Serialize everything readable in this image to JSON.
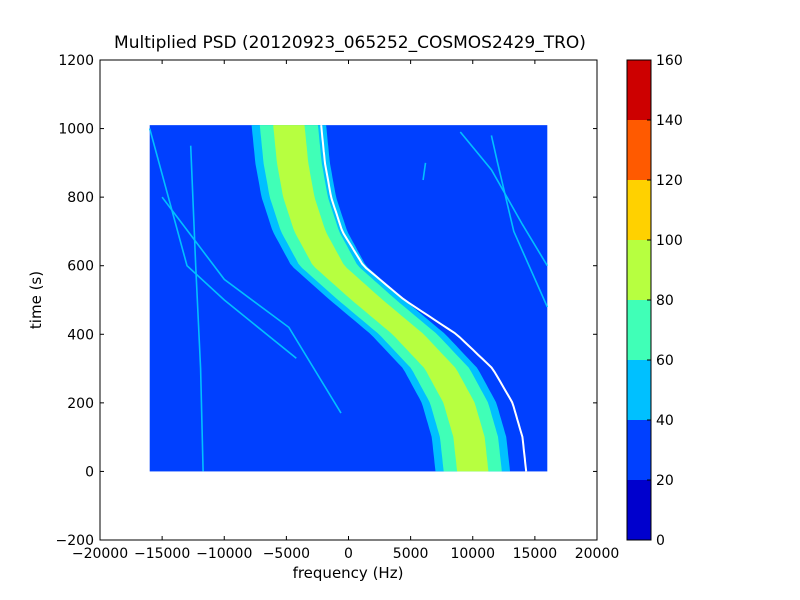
{
  "chart_data": {
    "type": "heatmap",
    "title": "Multiplied PSD (20120923_065252_COSMOS2429_TRO)",
    "xlabel": "frequency (Hz)",
    "ylabel": "time (s)",
    "xlim": [
      -20000,
      20000
    ],
    "ylim": [
      -200,
      1200
    ],
    "xticks": [
      -20000,
      -15000,
      -10000,
      -5000,
      0,
      5000,
      10000,
      15000,
      20000
    ],
    "xtick_labels": [
      "−20000",
      "−15000",
      "−10000",
      "−5000",
      "0",
      "5000",
      "10000",
      "15000",
      "20000"
    ],
    "yticks": [
      -200,
      0,
      200,
      400,
      600,
      800,
      1000,
      1200
    ],
    "ytick_labels": [
      "−200",
      "0",
      "200",
      "400",
      "600",
      "800",
      "1000",
      "1200"
    ],
    "data_extent": {
      "freq": [
        -16000,
        16000
      ],
      "time": [
        0,
        1010
      ]
    },
    "colormap": "jet",
    "colorbar": {
      "ticks": [
        0,
        20,
        40,
        60,
        80,
        100,
        120,
        140,
        160
      ],
      "tick_labels": [
        "0",
        "20",
        "40",
        "60",
        "80",
        "100",
        "120",
        "140",
        "160"
      ],
      "levels": [
        {
          "from": 0,
          "to": 20,
          "color": "#0000cd"
        },
        {
          "from": 20,
          "to": 40,
          "color": "#0040ff"
        },
        {
          "from": 40,
          "to": 60,
          "color": "#00c0ff"
        },
        {
          "from": 60,
          "to": 80,
          "color": "#40ffb7"
        },
        {
          "from": 80,
          "to": 100,
          "color": "#b7ff40"
        },
        {
          "from": 100,
          "to": 120,
          "color": "#ffd100"
        },
        {
          "from": 120,
          "to": 140,
          "color": "#ff5a00"
        },
        {
          "from": 140,
          "to": 160,
          "color": "#cd0000"
        }
      ]
    },
    "main_trace": {
      "description_points_time_s": [
        0,
        100,
        200,
        300,
        400,
        500,
        600,
        700,
        800,
        900,
        1010
      ],
      "center_freq_hz": [
        10000,
        9700,
        8900,
        7400,
        4800,
        1500,
        -1600,
        -3100,
        -4000,
        -4500,
        -4800
      ],
      "half_width_hz": 3000,
      "peak_level": 95
    },
    "fit_curve_white": {
      "time_s": [
        0,
        100,
        200,
        300,
        400,
        500,
        600,
        700,
        800,
        900,
        1010
      ],
      "freq_hz": [
        14300,
        14000,
        13200,
        11600,
        8700,
        4500,
        1200,
        -500,
        -1400,
        -1900,
        -2200
      ]
    },
    "secondary_traces": [
      {
        "time_s": [
          0,
          300,
          600,
          950
        ],
        "freq_hz": [
          -11700,
          -11900,
          -12300,
          -12700
        ],
        "level": 45
      },
      {
        "time_s": [
          170,
          420,
          560,
          800
        ],
        "freq_hz": [
          -600,
          -4800,
          -10000,
          -15000
        ],
        "level": 40
      },
      {
        "time_s": [
          330,
          500,
          600,
          1000
        ],
        "freq_hz": [
          -4200,
          -10000,
          -13000,
          -16000
        ],
        "level": 40
      },
      {
        "time_s": [
          480,
          700,
          900,
          980
        ],
        "freq_hz": [
          16000,
          13300,
          12000,
          11500
        ],
        "level": 40
      },
      {
        "time_s": [
          600,
          720,
          880,
          990
        ],
        "freq_hz": [
          16000,
          14000,
          11500,
          9000
        ],
        "level": 40
      },
      {
        "time_s": [
          850,
          900
        ],
        "freq_hz": [
          6000,
          6200
        ],
        "level": 40
      }
    ]
  }
}
